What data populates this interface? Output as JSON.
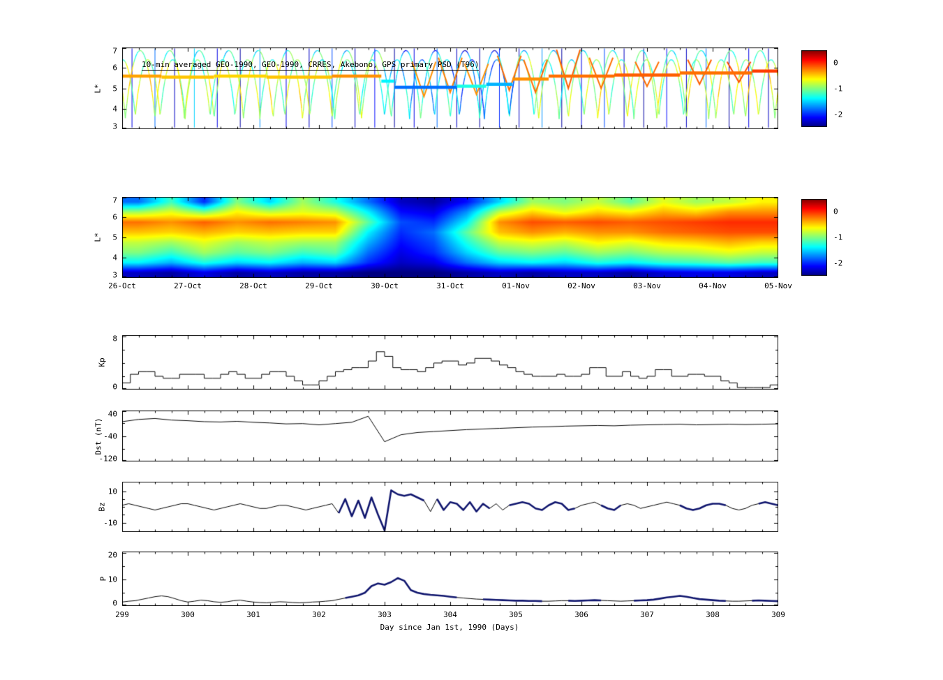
{
  "chart_data": [
    {
      "id": "psd_trajectories",
      "type": "trajectory",
      "title": "10-min averaged GEO-1990, GEO-1990, CRRES, Akebono, GPS primary PSD (T96)",
      "ylabel": "L*",
      "ylim": [
        3,
        7
      ],
      "xlim": [
        299,
        309
      ],
      "yticks_all": [
        3,
        4,
        5,
        6,
        7
      ],
      "yticks_labeled": [
        3,
        4,
        5,
        6,
        7
      ],
      "colorbar": {
        "range": [
          -2.5,
          0.5
        ],
        "ticks": [
          0,
          -1,
          -2
        ]
      },
      "day_base_values": [
        -0.7,
        -0.85,
        -0.75,
        -0.9,
        -1.3,
        -1.5,
        -0.95,
        -0.75,
        -0.8,
        -0.7
      ],
      "orbit_families": [
        {
          "period": 0.45,
          "t0": 299.05,
          "l_apogee": 6.85,
          "l_perigee": 3.4,
          "value_offset": 0
        },
        {
          "period": 0.38,
          "t0": 299.2,
          "l_apogee": 6.4,
          "l_perigee": 3.5,
          "value_offset": -0.2
        }
      ],
      "streaks": [
        [
          299.15,
          -2.2
        ],
        [
          299.5,
          -1.8
        ],
        [
          299.8,
          -2.3
        ],
        [
          300.1,
          -1.5
        ],
        [
          300.45,
          -2.2
        ],
        [
          300.8,
          -2.4
        ],
        [
          301.1,
          -1.7
        ],
        [
          301.5,
          -2.2
        ],
        [
          301.85,
          -2.3
        ],
        [
          302.2,
          -1.9
        ],
        [
          302.55,
          -2.3
        ],
        [
          302.85,
          -2.1
        ],
        [
          303.15,
          -2.4
        ],
        [
          303.45,
          -2.2
        ],
        [
          303.8,
          -1.8
        ],
        [
          304.1,
          -2.3
        ],
        [
          304.45,
          -2.4
        ],
        [
          304.75,
          -2.0
        ],
        [
          305.05,
          -2.3
        ],
        [
          305.4,
          -1.7
        ],
        [
          305.7,
          -2.4
        ],
        [
          306.0,
          -2.2
        ],
        [
          306.35,
          -1.9
        ],
        [
          306.65,
          -2.3
        ],
        [
          306.95,
          -2.4
        ],
        [
          307.3,
          -2.1
        ],
        [
          307.6,
          -2.3
        ],
        [
          307.9,
          -1.8
        ],
        [
          308.25,
          -2.4
        ],
        [
          308.55,
          -2.2
        ],
        [
          308.85,
          -2.3
        ]
      ],
      "band_segments": [
        {
          "x0": 299.0,
          "x1": 299.6,
          "l": 5.6,
          "v": -0.35
        },
        {
          "x0": 299.6,
          "x1": 300.4,
          "l": 5.55,
          "v": -0.45
        },
        {
          "x0": 300.4,
          "x1": 301.2,
          "l": 5.6,
          "v": -0.5
        },
        {
          "x0": 301.2,
          "x1": 302.2,
          "l": 5.55,
          "v": -0.45
        },
        {
          "x0": 302.2,
          "x1": 302.95,
          "l": 5.6,
          "v": -0.3
        },
        {
          "x0": 302.95,
          "x1": 303.15,
          "l": 5.35,
          "v": -1.4
        },
        {
          "x0": 303.15,
          "x1": 304.1,
          "l": 5.05,
          "v": -1.8
        },
        {
          "x0": 304.1,
          "x1": 304.55,
          "l": 5.1,
          "v": -1.3
        },
        {
          "x0": 304.55,
          "x1": 304.95,
          "l": 5.2,
          "v": -1.6
        },
        {
          "x0": 304.95,
          "x1": 305.5,
          "l": 5.45,
          "v": -0.3
        },
        {
          "x0": 305.5,
          "x1": 306.5,
          "l": 5.6,
          "v": -0.2
        },
        {
          "x0": 306.5,
          "x1": 307.5,
          "l": 5.65,
          "v": -0.15
        },
        {
          "x0": 307.5,
          "x1": 308.6,
          "l": 5.75,
          "v": -0.2
        },
        {
          "x0": 308.6,
          "x1": 309.0,
          "l": 5.85,
          "v": -0.05
        }
      ],
      "band_spikes": [
        {
          "x": 303.6,
          "l_top": 6.3,
          "l_bot": 4.6,
          "v": -0.3
        },
        {
          "x": 304.0,
          "l_top": 6.5,
          "l_bot": 4.8,
          "v": -0.25
        },
        {
          "x": 304.4,
          "l_top": 6.2,
          "l_bot": 4.7,
          "v": -0.3
        },
        {
          "x": 304.9,
          "l_top": 6.6,
          "l_bot": 4.9,
          "v": -0.2
        },
        {
          "x": 305.3,
          "l_top": 6.4,
          "l_bot": 4.8,
          "v": -0.2
        },
        {
          "x": 305.8,
          "l_top": 6.9,
          "l_bot": 5.0,
          "v": -0.15
        },
        {
          "x": 306.3,
          "l_top": 6.5,
          "l_bot": 5.0,
          "v": -0.2
        },
        {
          "x": 307.0,
          "l_top": 6.3,
          "l_bot": 5.1,
          "v": -0.2
        },
        {
          "x": 307.8,
          "l_top": 6.4,
          "l_bot": 5.2,
          "v": -0.15
        },
        {
          "x": 308.4,
          "l_top": 6.3,
          "l_bot": 5.3,
          "v": -0.1
        }
      ]
    },
    {
      "id": "psd_map",
      "type": "heatmap",
      "ylabel": "L*",
      "ylim": [
        3,
        7
      ],
      "xlim": [
        299,
        309
      ],
      "yticks_all": [
        3,
        4,
        5,
        6,
        7
      ],
      "yticks_labeled": [
        3,
        4,
        5,
        6,
        7
      ],
      "colorbar": {
        "range": [
          -2.5,
          0.5
        ],
        "ticks": [
          0,
          -1,
          -2
        ]
      },
      "x_tick_labels": [
        "26-Oct",
        "27-Oct",
        "28-Oct",
        "29-Oct",
        "30-Oct",
        "31-Oct",
        "01-Nov",
        "02-Nov",
        "03-Nov",
        "04-Nov",
        "05-Nov"
      ],
      "x_start": 299,
      "dx": 0.5,
      "l_top": 7,
      "dl": 0.5,
      "values": [
        [
          -1.8,
          -1.2,
          -2.0,
          -1.0,
          -1.5,
          -0.9,
          -1.3,
          -1.8,
          -2.3,
          -2.4,
          -2.1,
          -1.5,
          -0.9,
          -1.0,
          -0.8,
          -1.1,
          -0.7,
          -0.9,
          -0.8,
          -0.6
        ],
        [
          -0.9,
          -0.7,
          -1.0,
          -0.6,
          -0.8,
          -0.7,
          -0.8,
          -1.4,
          -2.1,
          -2.2,
          -1.7,
          -0.8,
          -0.5,
          -0.7,
          -0.5,
          -0.6,
          -0.4,
          -0.5,
          -0.3,
          -0.3
        ],
        [
          -0.2,
          -0.3,
          -0.15,
          -0.3,
          -0.2,
          -0.25,
          -0.3,
          -1.1,
          -1.9,
          -2.0,
          -1.4,
          -0.3,
          -0.1,
          -0.15,
          -0.1,
          -0.15,
          -0.1,
          -0.05,
          0,
          0
        ],
        [
          -0.45,
          -0.5,
          -0.4,
          -0.5,
          -0.45,
          -0.5,
          -0.5,
          -1.4,
          -2.0,
          -1.8,
          -1.1,
          -0.45,
          -0.3,
          -0.4,
          -0.3,
          -0.3,
          -0.2,
          -0.15,
          -0.1,
          -0.1
        ],
        [
          -0.8,
          -0.9,
          -0.7,
          -0.9,
          -0.8,
          -0.9,
          -0.9,
          -1.6,
          -2.1,
          -1.9,
          -1.3,
          -0.8,
          -0.7,
          -0.8,
          -0.6,
          -0.7,
          -0.55,
          -0.5,
          -0.4,
          -0.5
        ],
        [
          -1.0,
          -1.2,
          -0.9,
          -1.1,
          -1.0,
          -1.2,
          -1.1,
          -1.8,
          -2.2,
          -2.0,
          -1.5,
          -1.1,
          -1.0,
          -1.1,
          -0.9,
          -1.0,
          -0.85,
          -0.8,
          -0.7,
          -0.8
        ],
        [
          -1.4,
          -1.6,
          -1.3,
          -1.5,
          -1.4,
          -1.6,
          -1.5,
          -2.0,
          -2.3,
          -2.2,
          -1.8,
          -1.5,
          -1.4,
          -1.5,
          -1.3,
          -1.4,
          -1.25,
          -1.2,
          -1.1,
          -1.2
        ],
        [
          -2.3,
          -2.4,
          -2.2,
          -2.4,
          -2.3,
          -2.4,
          -2.4,
          -2.5,
          -2.5,
          -2.5,
          -2.4,
          -2.3,
          -2.4,
          -2.3,
          -2.3,
          -2.4,
          -2.25,
          -2.2,
          -2.2,
          -2.3
        ]
      ]
    },
    {
      "id": "kp",
      "type": "line",
      "mode": "step",
      "ylabel": "Kp",
      "ylim": [
        0,
        8.2
      ],
      "xlim": [
        299,
        309
      ],
      "yticks_all": [
        0,
        2,
        4,
        6,
        8
      ],
      "yticks_labeled": [
        8,
        0
      ],
      "x_start": 299,
      "dt": 0.125,
      "values": [
        1.0,
        2.3,
        2.7,
        2.7,
        2.0,
        1.7,
        1.7,
        2.3,
        2.3,
        2.3,
        1.7,
        1.7,
        2.3,
        2.7,
        2.3,
        1.7,
        1.7,
        2.3,
        2.7,
        2.7,
        2.0,
        1.3,
        0.7,
        0.7,
        1.3,
        2.0,
        2.7,
        3.0,
        3.3,
        3.3,
        4.3,
        5.7,
        5.0,
        3.3,
        3.0,
        3.0,
        2.7,
        3.3,
        4.0,
        4.3,
        4.3,
        3.7,
        4.0,
        4.7,
        4.7,
        4.3,
        3.7,
        3.3,
        2.7,
        2.3,
        2.0,
        2.0,
        2.0,
        2.3,
        2.0,
        2.0,
        2.3,
        3.3,
        3.3,
        2.0,
        2.0,
        2.7,
        2.0,
        1.7,
        2.0,
        3.0,
        3.0,
        2.0,
        2.0,
        2.3,
        2.3,
        2.0,
        2.0,
        1.3,
        1.0,
        0.3,
        0.3,
        0.3,
        0.3,
        0.7
      ]
    },
    {
      "id": "dst",
      "type": "line",
      "ylabel": "Dst (nT)",
      "ylim": [
        -120,
        40
      ],
      "xlim": [
        299,
        309
      ],
      "yticks_all": [
        40,
        0,
        -40,
        -80,
        -120
      ],
      "yticks_labeled": [
        40,
        -40,
        -120
      ],
      "x_start": 299,
      "dt": 0.25,
      "values": [
        5,
        12,
        15,
        10,
        8,
        5,
        4,
        6,
        3,
        1,
        -2,
        -1,
        -5,
        -1,
        3,
        22,
        -58,
        -36,
        -29,
        -26,
        -23,
        -20,
        -18,
        -16,
        -14,
        -12,
        -11,
        -9,
        -8,
        -7,
        -8,
        -6,
        -5,
        -4,
        -3,
        -5,
        -4,
        -3,
        -4,
        -3,
        -2
      ]
    },
    {
      "id": "bz",
      "type": "line",
      "ylabel": "Bz",
      "ylim": [
        -16,
        16
      ],
      "xlim": [
        299,
        309
      ],
      "yticks_all": [
        10,
        5,
        0,
        -5,
        -10
      ],
      "yticks_labeled": [
        10,
        -10
      ],
      "x_start": 299,
      "dt": 0.1,
      "overlay_color": "#10166e",
      "overlay_ranges": [
        [
          302.3,
          303.6
        ],
        [
          303.8,
          304.6
        ],
        [
          304.9,
          305.9
        ],
        [
          306.3,
          306.6
        ],
        [
          307.5,
          308.2
        ],
        [
          308.7,
          309.0
        ]
      ],
      "values": [
        1,
        2,
        1,
        0,
        -1,
        -2,
        -1,
        0,
        1,
        2,
        2,
        1,
        0,
        -1,
        -2,
        -1,
        0,
        1,
        2,
        1,
        0,
        -1,
        -1,
        0,
        1,
        1,
        0,
        -1,
        -2,
        -1,
        0,
        1,
        2,
        -4,
        5,
        -6,
        4,
        -7,
        6,
        -5,
        -15,
        10.5,
        8,
        7,
        8,
        6,
        4,
        -3,
        5,
        -2,
        3,
        2,
        -2,
        3,
        -3,
        2,
        -1,
        2,
        -2,
        1,
        2,
        3,
        2,
        -1,
        -2,
        1,
        3,
        2,
        -2,
        -1,
        1,
        2,
        3,
        1,
        -1,
        -2,
        1,
        2,
        1,
        -1,
        0,
        1,
        2,
        3,
        2,
        1,
        -1,
        -2,
        -1,
        1,
        2,
        2,
        1,
        -1,
        -2,
        -1,
        1,
        2,
        3,
        2,
        1
      ]
    },
    {
      "id": "p",
      "type": "line",
      "ylabel": "P",
      "ylim": [
        0,
        20.5
      ],
      "xlim": [
        299,
        309
      ],
      "yticks_all": [
        0,
        5,
        10,
        15,
        20
      ],
      "yticks_labeled": [
        20,
        10,
        0
      ],
      "x_start": 299,
      "dt": 0.1,
      "overlay_color": "#10166e",
      "overlay_ranges": [
        [
          302.4,
          304.1
        ],
        [
          304.5,
          305.4
        ],
        [
          305.8,
          306.3
        ],
        [
          306.8,
          308.2
        ],
        [
          308.6,
          309.0
        ]
      ],
      "xlabel": "Day since Jan 1st, 1990 (Days)",
      "x_tick_labels": [
        "299",
        "300",
        "301",
        "302",
        "303",
        "304",
        "305",
        "306",
        "307",
        "308",
        "309"
      ],
      "values": [
        1.5,
        1.8,
        2.0,
        2.5,
        3.0,
        3.5,
        3.8,
        3.5,
        2.8,
        2.0,
        1.5,
        1.8,
        2.2,
        2.0,
        1.6,
        1.4,
        1.6,
        2.0,
        2.2,
        1.8,
        1.5,
        1.3,
        1.2,
        1.4,
        1.6,
        1.5,
        1.3,
        1.2,
        1.3,
        1.5,
        1.6,
        1.8,
        2.0,
        2.5,
        3.0,
        3.5,
        4.0,
        5.0,
        7.5,
        8.5,
        8.0,
        9.0,
        10.5,
        9.5,
        6.0,
        5.0,
        4.5,
        4.2,
        4.0,
        3.8,
        3.5,
        3.2,
        3.0,
        2.8,
        2.6,
        2.5,
        2.4,
        2.3,
        2.2,
        2.1,
        2.0,
        2.0,
        1.9,
        1.9,
        1.8,
        1.8,
        1.9,
        2.0,
        2.0,
        1.9,
        2.0,
        2.1,
        2.2,
        2.1,
        2.0,
        1.9,
        1.8,
        1.9,
        2.0,
        2.1,
        2.2,
        2.4,
        2.8,
        3.2,
        3.5,
        3.8,
        3.5,
        3.0,
        2.6,
        2.4,
        2.2,
        2.0,
        1.9,
        1.8,
        1.8,
        1.9,
        2.0,
        2.1,
        2.0,
        1.9,
        1.8
      ]
    }
  ]
}
